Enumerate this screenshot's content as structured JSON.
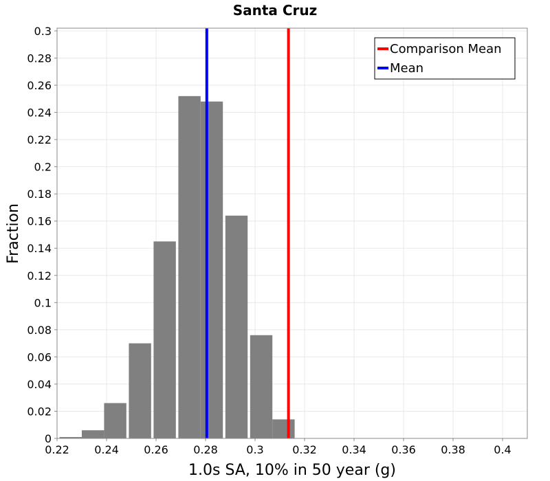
{
  "chart_data": {
    "type": "bar",
    "title": "Santa Cruz",
    "xlabel": "1.0s SA, 10% in 50 year (g)",
    "ylabel": "Fraction",
    "xlim": [
      0.22,
      0.41
    ],
    "ylim": [
      0,
      0.302
    ],
    "grid": true,
    "legend_position": "top-right",
    "x_ticks": [
      "0.22",
      "0.24",
      "0.26",
      "0.28",
      "0.3",
      "0.32",
      "0.34",
      "0.36",
      "0.38",
      "0.4"
    ],
    "x_tick_values": [
      0.22,
      0.24,
      0.26,
      0.28,
      0.3,
      0.32,
      0.34,
      0.36,
      0.38,
      0.4
    ],
    "y_ticks": [
      "0",
      "0.02",
      "0.04",
      "0.06",
      "0.08",
      "0.1",
      "0.12",
      "0.14",
      "0.16",
      "0.18",
      "0.2",
      "0.22",
      "0.24",
      "0.26",
      "0.28",
      "0.3"
    ],
    "y_tick_values": [
      0,
      0.02,
      0.04,
      0.06,
      0.08,
      0.1,
      0.12,
      0.14,
      0.16,
      0.18,
      0.2,
      0.22,
      0.24,
      0.26,
      0.28,
      0.3
    ],
    "bins": [
      {
        "center": 0.2255,
        "value": 0.001
      },
      {
        "center": 0.2345,
        "value": 0.006
      },
      {
        "center": 0.2435,
        "value": 0.026
      },
      {
        "center": 0.2535,
        "value": 0.07
      },
      {
        "center": 0.2635,
        "value": 0.145
      },
      {
        "center": 0.2735,
        "value": 0.252
      },
      {
        "center": 0.2825,
        "value": 0.248
      },
      {
        "center": 0.2925,
        "value": 0.164
      },
      {
        "center": 0.3025,
        "value": 0.076
      },
      {
        "center": 0.3115,
        "value": 0.014
      }
    ],
    "bin_width": 0.009,
    "bar_color": "#808080",
    "vertical_lines": [
      {
        "name": "Comparison Mean",
        "x": 0.3135,
        "color": "#ff0000"
      },
      {
        "name": "Mean",
        "x": 0.2805,
        "color": "#0000ff"
      }
    ]
  }
}
